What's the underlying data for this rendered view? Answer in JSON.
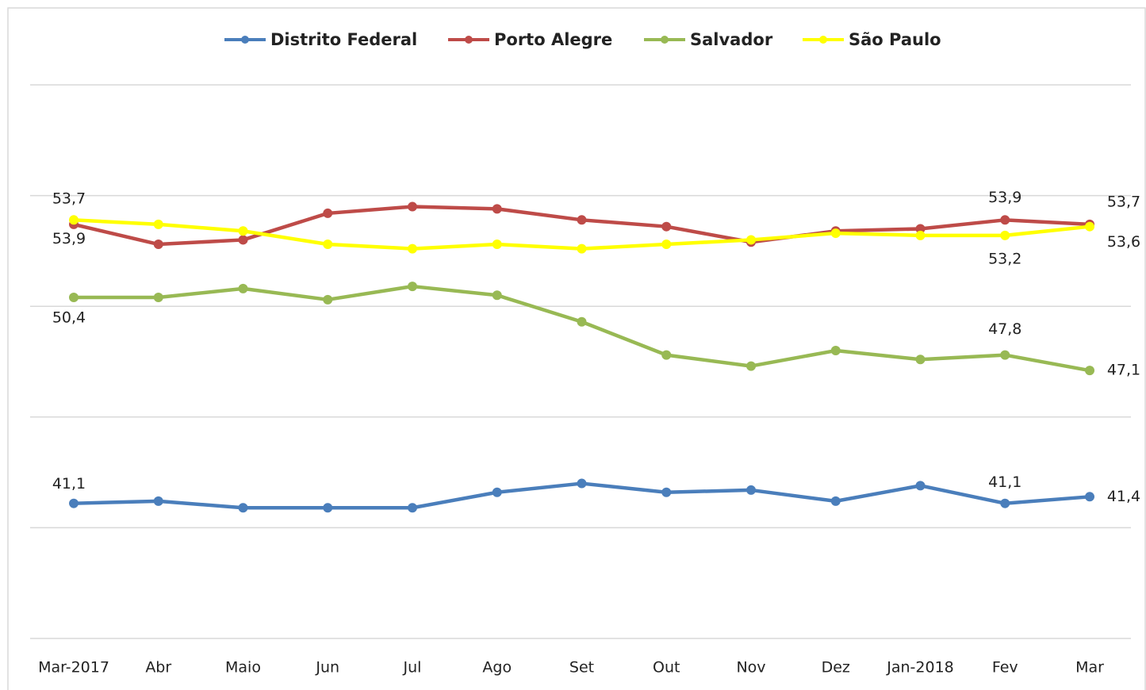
{
  "chart_data": {
    "type": "line",
    "categories": [
      "Mar-2017",
      "Abr",
      "Maio",
      "Jun",
      "Jul",
      "Ago",
      "Set",
      "Out",
      "Nov",
      "Dez",
      "Jan-2018",
      "Fev",
      "Mar"
    ],
    "series": [
      {
        "name": "Distrito Federal",
        "color": "#4a7ebb",
        "values": [
          41.1,
          41.2,
          40.9,
          40.9,
          40.9,
          41.6,
          42.0,
          41.6,
          41.7,
          41.2,
          41.9,
          41.1,
          41.4
        ],
        "value_labels": [
          "41,1",
          null,
          null,
          null,
          null,
          null,
          null,
          null,
          null,
          null,
          null,
          "41,1",
          "41,4"
        ]
      },
      {
        "name": "Porto Alegre",
        "color": "#be4b48",
        "values": [
          53.7,
          52.8,
          53.0,
          54.2,
          54.5,
          54.4,
          53.9,
          53.6,
          52.9,
          53.4,
          53.5,
          53.9,
          53.7
        ],
        "value_labels": [
          "53,7",
          null,
          null,
          null,
          null,
          null,
          null,
          null,
          null,
          null,
          null,
          "53,9",
          "53,7"
        ]
      },
      {
        "name": "Salvador",
        "color": "#98b954",
        "values": [
          50.4,
          50.4,
          50.8,
          50.3,
          50.9,
          50.5,
          49.3,
          47.8,
          47.3,
          48.0,
          47.6,
          47.8,
          47.1
        ],
        "value_labels": [
          "50,4",
          null,
          null,
          null,
          null,
          null,
          null,
          null,
          null,
          null,
          null,
          "47,8",
          "47,1"
        ]
      },
      {
        "name": "São Paulo",
        "color": "#ffff00",
        "values": [
          53.9,
          53.7,
          53.4,
          52.8,
          52.6,
          52.8,
          52.6,
          52.8,
          53.0,
          53.3,
          53.2,
          53.2,
          53.6
        ],
        "value_labels": [
          "53,9",
          null,
          null,
          null,
          null,
          null,
          null,
          null,
          null,
          null,
          null,
          "53,2",
          "53,6"
        ]
      }
    ],
    "ylim": [
      35,
      60
    ],
    "yticks": [
      35,
      40,
      45,
      50,
      55,
      60
    ],
    "grid": true
  }
}
